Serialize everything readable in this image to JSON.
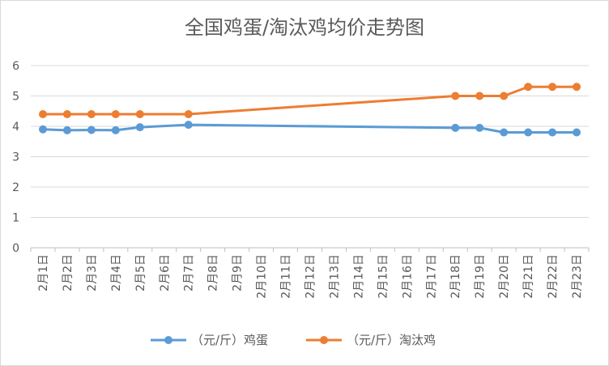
{
  "chart_data": {
    "type": "line",
    "title": "全国鸡蛋/淘汰鸡均价走势图",
    "xlabel": "",
    "ylabel": "",
    "categories": [
      "2月1日",
      "2月2日",
      "2月3日",
      "2月4日",
      "2月5日",
      "2月6日",
      "2月7日",
      "2月8日",
      "2月9日",
      "2月10日",
      "2月11日",
      "2月12日",
      "2月13日",
      "2月14日",
      "2月15日",
      "2月16日",
      "2月17日",
      "2月18日",
      "2月19日",
      "2月20日",
      "2月21日",
      "2月22日",
      "2月23日"
    ],
    "ylim": [
      0,
      6
    ],
    "yticks": [
      0,
      1,
      2,
      3,
      4,
      5,
      6
    ],
    "grid": true,
    "legend_position": "bottom",
    "series": [
      {
        "name": "（元/斤）鸡蛋",
        "color": "#5B9BD5",
        "values": [
          3.9,
          3.87,
          3.88,
          3.87,
          3.97,
          null,
          4.05,
          null,
          null,
          null,
          null,
          null,
          null,
          null,
          null,
          null,
          null,
          3.95,
          3.95,
          3.8,
          3.8,
          3.8,
          3.8
        ]
      },
      {
        "name": "（元/斤）淘汰鸡",
        "color": "#ED7D31",
        "values": [
          4.4,
          4.4,
          4.4,
          4.4,
          4.4,
          null,
          4.4,
          null,
          null,
          null,
          null,
          null,
          null,
          null,
          null,
          null,
          null,
          5.0,
          5.0,
          5.0,
          5.3,
          5.3,
          5.3
        ]
      }
    ]
  }
}
